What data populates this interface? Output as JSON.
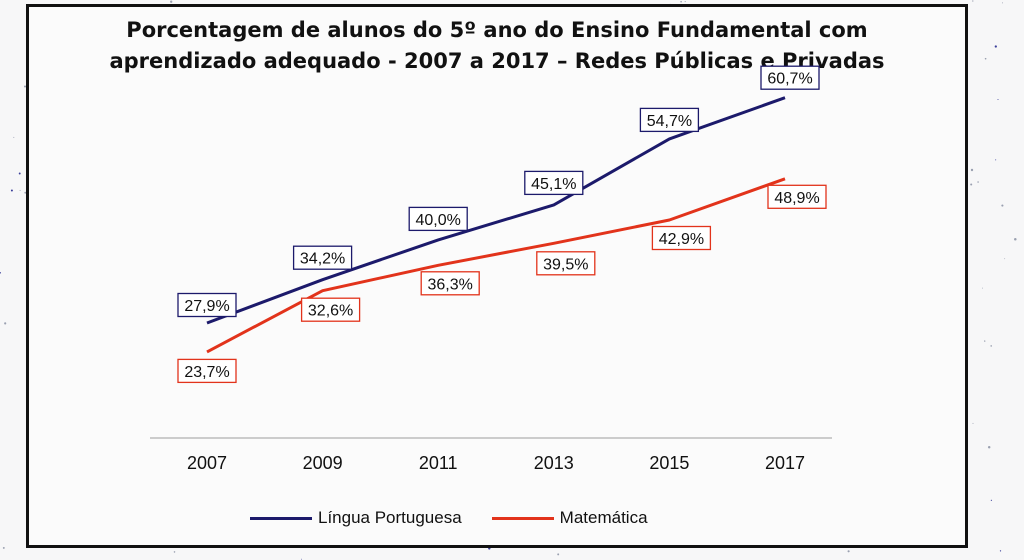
{
  "colors": {
    "portuguese": "#1c1a6b",
    "math": "#e2331b",
    "axis": "#bdbdbd",
    "frame": "#111111"
  },
  "chart_data": {
    "type": "line",
    "title_lines": [
      "Porcentagem de alunos do 5º ano do Ensino Fundamental  com",
      "aprendizado adequado - 2007 a 2017 – Redes Públicas e Privadas"
    ],
    "categories": [
      "2007",
      "2009",
      "2011",
      "2013",
      "2015",
      "2017"
    ],
    "series": [
      {
        "name": "Língua Portuguesa",
        "color": "#1c1a6b",
        "values": [
          27.9,
          34.2,
          40.0,
          45.1,
          54.7,
          60.7
        ],
        "labels": [
          "27,9%",
          "34,2%",
          "40,0%",
          "45,1%",
          "54,7%",
          "60,7%"
        ]
      },
      {
        "name": "Matemática",
        "color": "#e2331b",
        "values": [
          23.7,
          32.6,
          36.3,
          39.5,
          42.9,
          48.9
        ],
        "labels": [
          "23,7%",
          "32,6%",
          "36,3%",
          "39,5%",
          "42,9%",
          "48,9%"
        ]
      }
    ],
    "xlabel": "",
    "ylabel": "",
    "ylim": [
      0,
      70
    ],
    "y_axis_visible": false,
    "grid": false,
    "legend_position": "bottom"
  }
}
